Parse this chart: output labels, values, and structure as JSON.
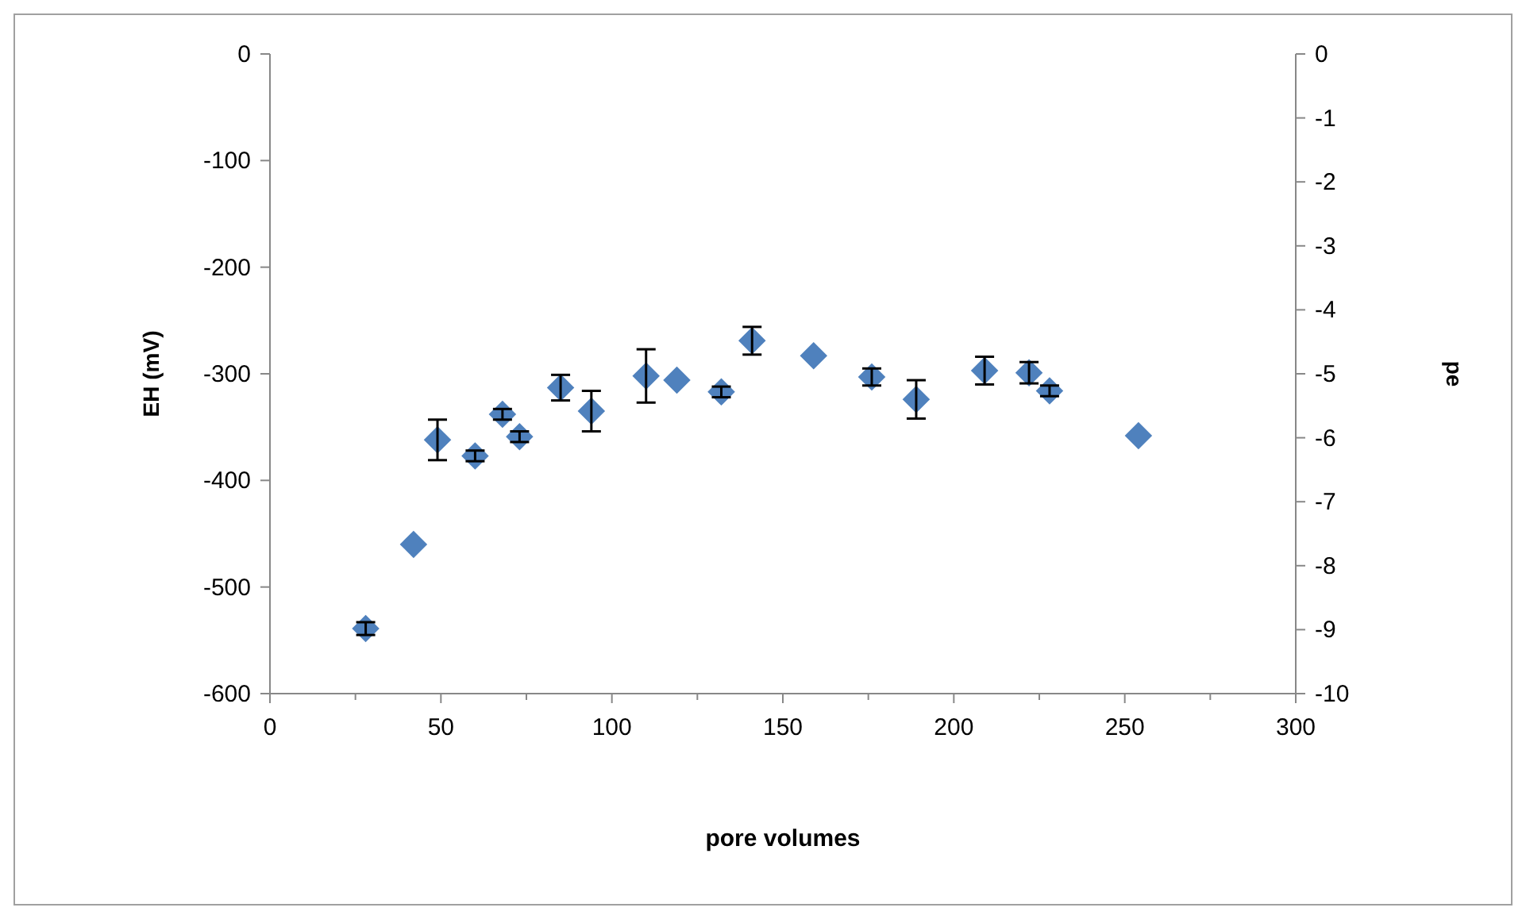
{
  "chart_data": {
    "type": "scatter",
    "xlabel": "pore volumes",
    "ylabel": "EH (mV)",
    "y2label": "pe",
    "x": [
      28,
      42,
      49,
      60,
      68,
      73,
      85,
      94,
      110,
      119,
      132,
      141,
      159,
      176,
      189,
      209,
      222,
      228,
      254
    ],
    "values": [
      -539,
      -460,
      -362,
      -377,
      -338,
      -359,
      -313,
      -335,
      -302,
      -306,
      -317,
      -269,
      -283,
      -303,
      -324,
      -297,
      -299,
      -316,
      -358
    ],
    "errors": [
      6,
      null,
      19,
      5,
      5,
      5,
      12,
      19,
      25,
      null,
      5,
      13,
      null,
      8,
      18,
      13,
      10,
      5,
      null
    ],
    "color": "#4f81bd",
    "marker": "diamond",
    "grid": false,
    "xlim": [
      0,
      300
    ],
    "xticks": [
      0,
      50,
      100,
      150,
      200,
      250,
      300
    ],
    "ylim": [
      -600,
      0
    ],
    "yticks": [
      -600,
      -500,
      -400,
      -300,
      -200,
      -100,
      0
    ],
    "y2lim": [
      -10,
      0
    ],
    "y2ticks": [
      -10,
      -9,
      -8,
      -7,
      -6,
      -5,
      -4,
      -3,
      -2,
      -1,
      0
    ]
  }
}
